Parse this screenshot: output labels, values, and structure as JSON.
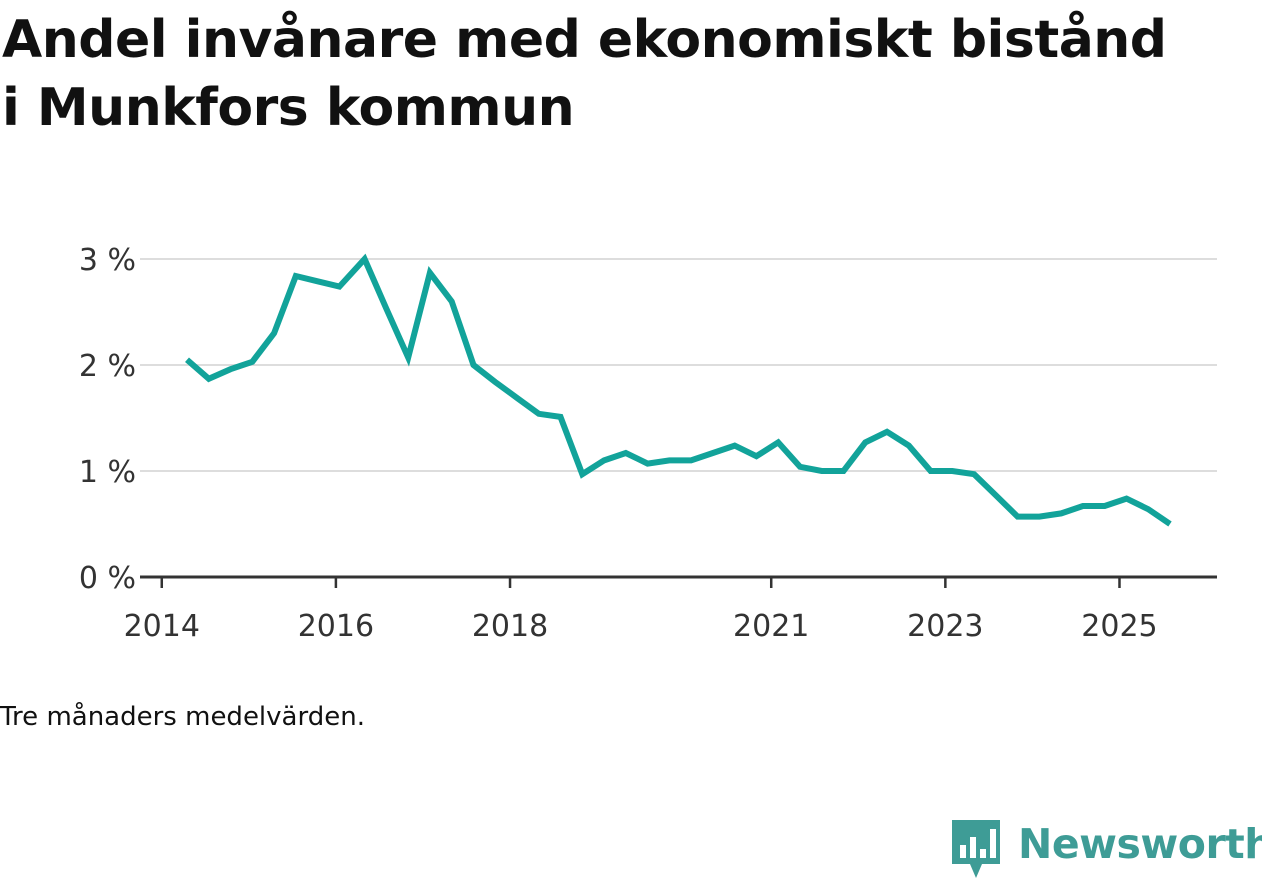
{
  "title": "Andel invånare med ekonomiskt bistånd i Munkfors kommun",
  "note": "Tre månaders medelvärden.",
  "brand": {
    "name": "Newsworthy",
    "icon": "bar-chart-speech-bubble-icon"
  },
  "colors": {
    "line": "#12a39a",
    "brand": "#3e9c96",
    "grid": "#dddddd",
    "axis": "#333333"
  },
  "chart_data": {
    "type": "line",
    "title": "Andel invånare med ekonomiskt bistånd i Munkfors kommun",
    "xlabel": "",
    "ylabel": "",
    "y_ticks": [
      {
        "value": 0,
        "label": "0 %"
      },
      {
        "value": 1,
        "label": "1 %"
      },
      {
        "value": 2,
        "label": "2 %"
      },
      {
        "value": 3,
        "label": "3 %"
      }
    ],
    "x_ticks": [
      {
        "value": 2014.0,
        "label": "2014"
      },
      {
        "value": 2016.0,
        "label": "2016"
      },
      {
        "value": 2018.0,
        "label": "2018"
      },
      {
        "value": 2021.0,
        "label": "2021"
      },
      {
        "value": 2023.0,
        "label": "2023"
      },
      {
        "value": 2025.0,
        "label": "2025"
      }
    ],
    "xlim": [
      2013.75,
      2026.12
    ],
    "ylim": [
      0,
      3
    ],
    "grid": true,
    "series": [
      {
        "name": "Andel invånare med ekonomiskt bistånd",
        "x": [
          2014.29,
          2014.54,
          2014.79,
          2015.04,
          2015.29,
          2015.54,
          2015.79,
          2016.04,
          2016.33,
          2016.58,
          2016.83,
          2017.08,
          2017.33,
          2017.58,
          2017.83,
          2018.08,
          2018.33,
          2018.58,
          2018.83,
          2019.08,
          2019.33,
          2019.58,
          2019.83,
          2020.08,
          2020.33,
          2020.58,
          2020.83,
          2021.08,
          2021.33,
          2021.58,
          2021.83,
          2022.08,
          2022.33,
          2022.58,
          2022.83,
          2023.08,
          2023.33,
          2023.58,
          2023.83,
          2024.08,
          2024.33,
          2024.58,
          2024.83,
          2025.08,
          2025.33,
          2025.58
        ],
        "values": [
          2.05,
          1.87,
          1.96,
          2.03,
          2.3,
          2.84,
          2.79,
          2.74,
          3.0,
          2.53,
          2.07,
          2.87,
          2.6,
          2.0,
          1.84,
          1.69,
          1.54,
          1.51,
          0.97,
          1.1,
          1.17,
          1.07,
          1.1,
          1.1,
          1.17,
          1.24,
          1.14,
          1.27,
          1.04,
          1.0,
          1.0,
          1.27,
          1.37,
          1.24,
          1.0,
          1.0,
          0.97,
          0.77,
          0.57,
          0.57,
          0.6,
          0.67,
          0.67,
          0.74,
          0.64,
          0.5
        ]
      }
    ]
  }
}
